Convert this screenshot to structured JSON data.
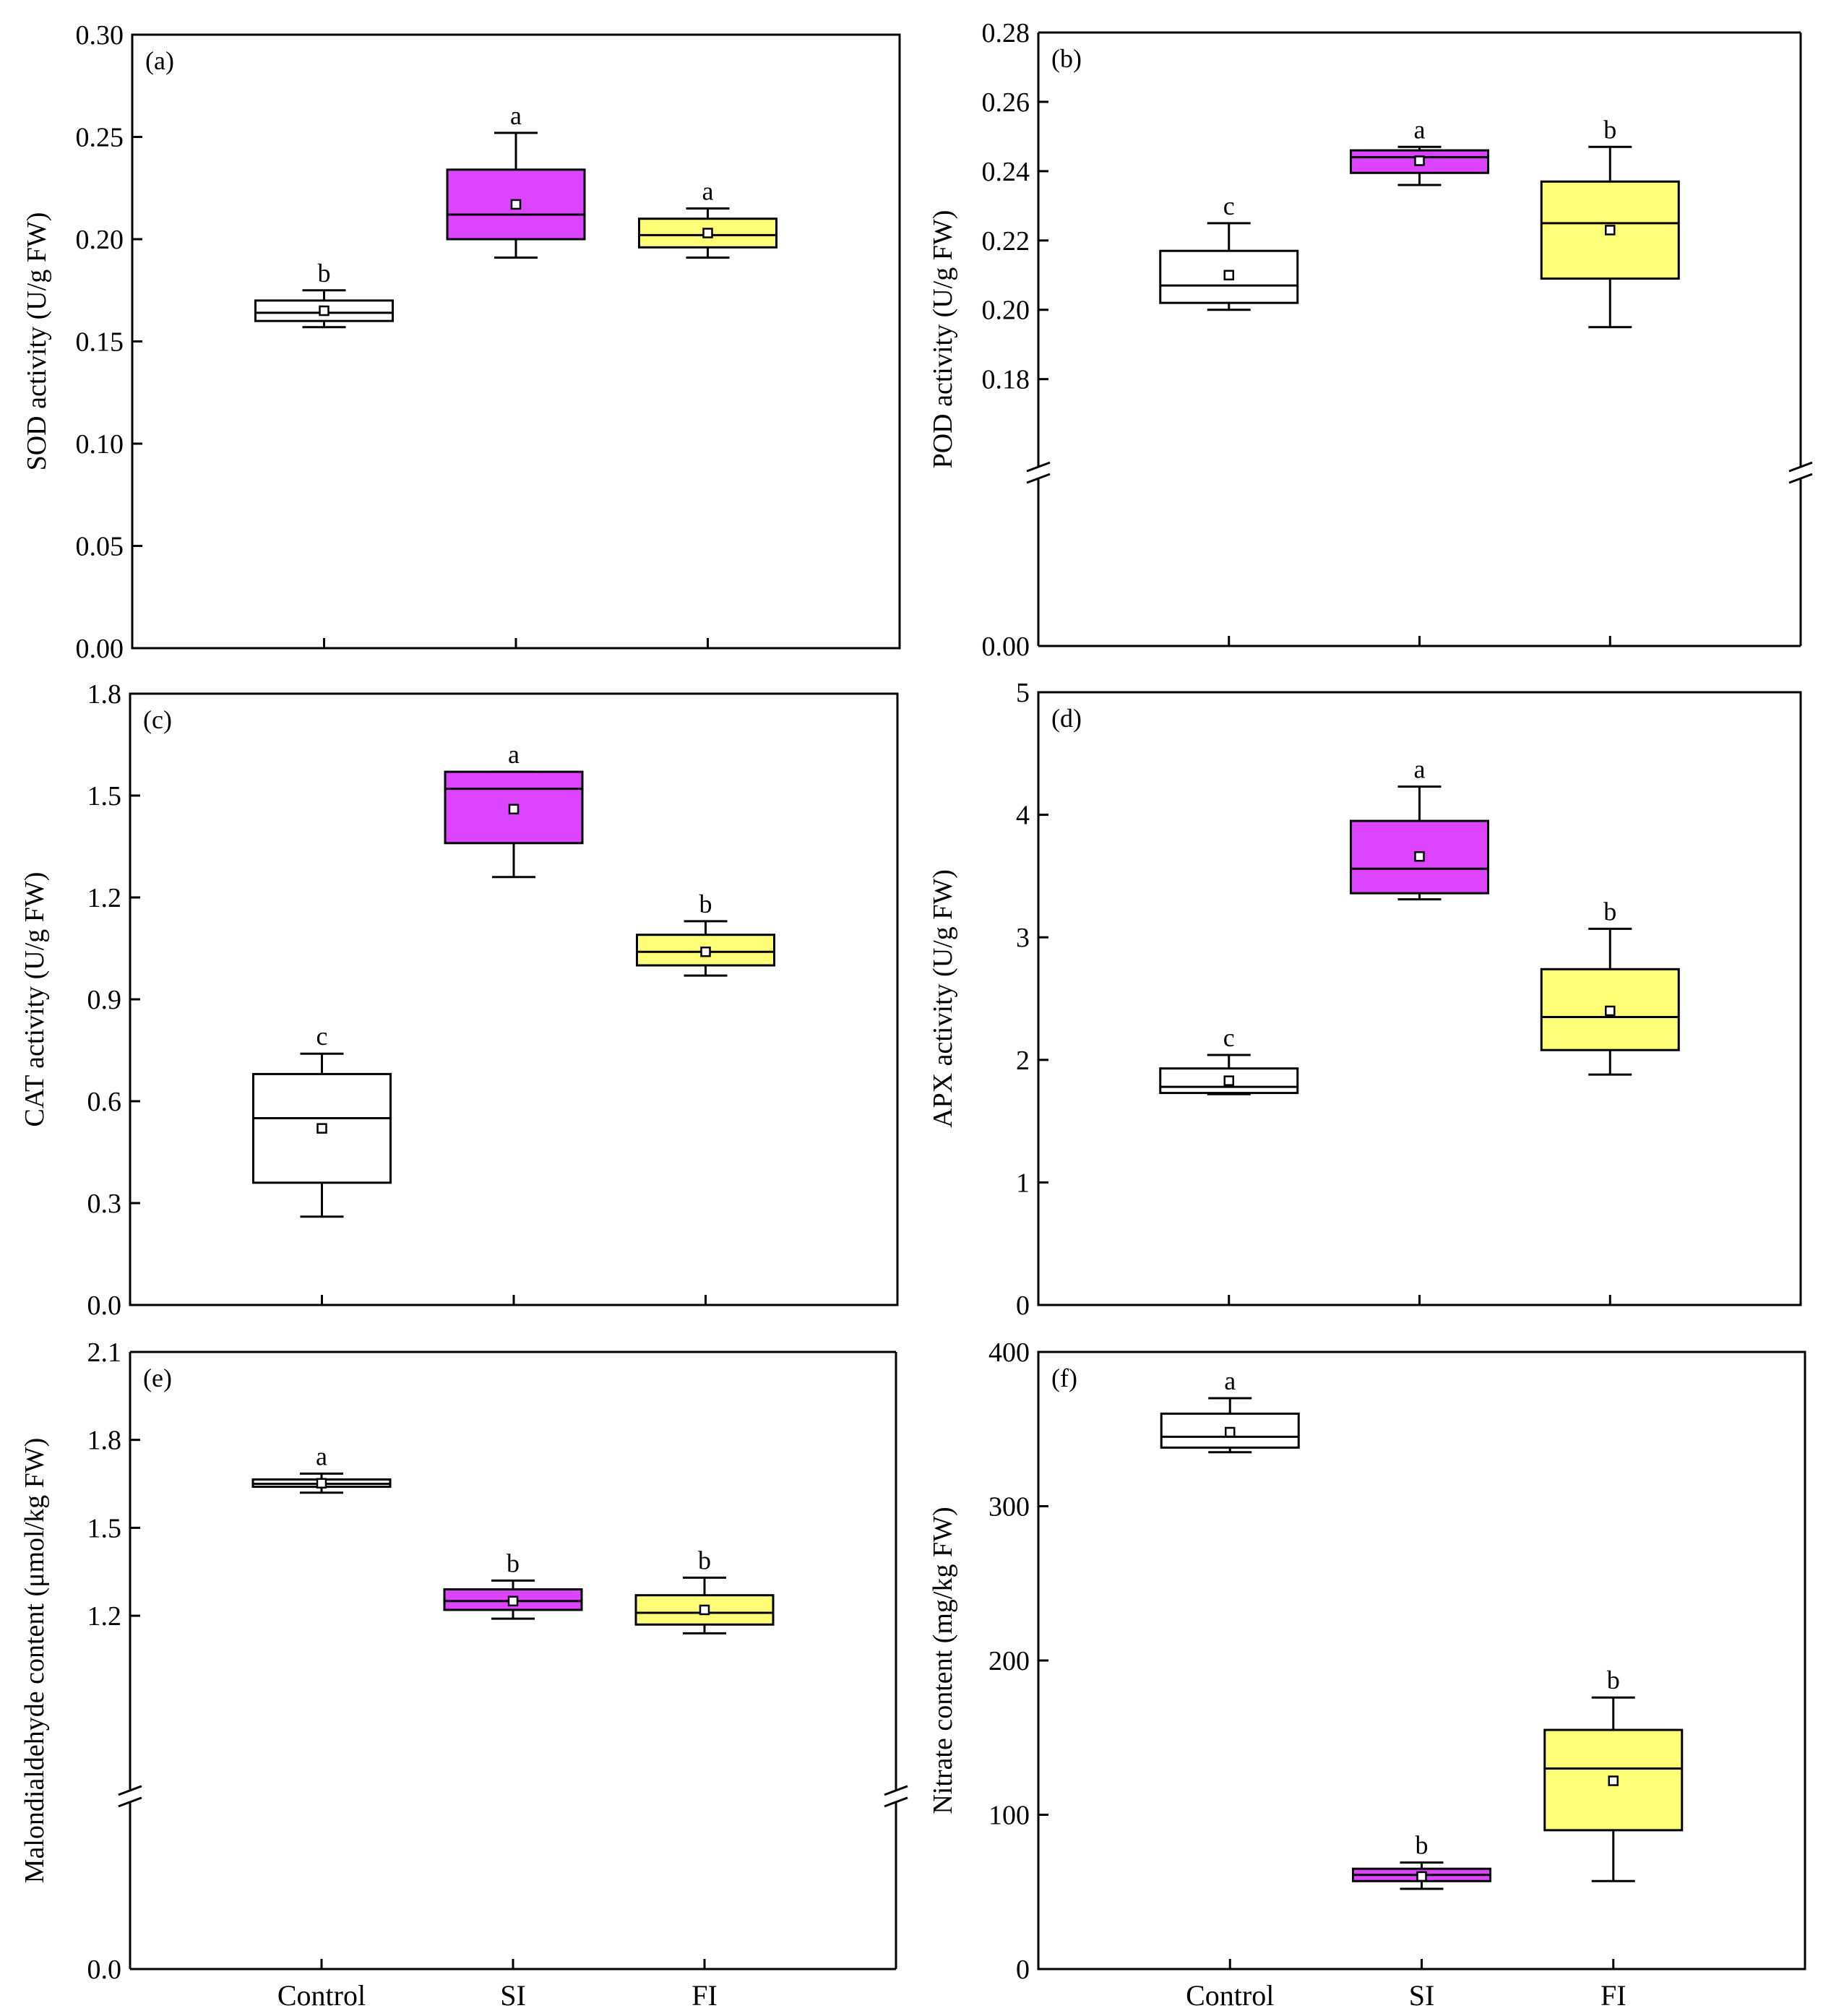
{
  "figure": {
    "categories": [
      "Control",
      "SI",
      "FI"
    ]
  },
  "colors": {
    "Control": "#ffffff",
    "SI": "#dd44ff",
    "FI": "#ffff77",
    "stroke": "#000000"
  },
  "chart_data": [
    {
      "type": "box",
      "panel": "(a)",
      "ylabel": "SOD activity (U/g FW)",
      "ylim": [
        0,
        0.3
      ],
      "yticks": [
        "0.00",
        "0.05",
        "0.10",
        "0.15",
        "0.20",
        "0.25",
        "0.30"
      ],
      "axis_break": null,
      "categories": [
        "Control",
        "SI",
        "FI"
      ],
      "boxes": [
        {
          "category": "Control",
          "whisker_low": 0.157,
          "q1": 0.16,
          "median": 0.164,
          "q3": 0.17,
          "whisker_high": 0.175,
          "mean": 0.165,
          "sig": "b"
        },
        {
          "category": "SI",
          "whisker_low": 0.191,
          "q1": 0.2,
          "median": 0.212,
          "q3": 0.234,
          "whisker_high": 0.252,
          "mean": 0.217,
          "sig": "a"
        },
        {
          "category": "FI",
          "whisker_low": 0.191,
          "q1": 0.196,
          "median": 0.202,
          "q3": 0.21,
          "whisker_high": 0.215,
          "mean": 0.203,
          "sig": "a"
        }
      ]
    },
    {
      "type": "box",
      "panel": "(b)",
      "ylabel": "POD activity (U/g FW)",
      "ylim": [
        0,
        0.28
      ],
      "yticks": [
        "0.00",
        "0.18",
        "0.20",
        "0.22",
        "0.24",
        "0.26",
        "0.28"
      ],
      "axis_break": {
        "low": 0.0,
        "high": 0.18
      },
      "categories": [
        "Control",
        "SI",
        "FI"
      ],
      "boxes": [
        {
          "category": "Control",
          "whisker_low": 0.2,
          "q1": 0.202,
          "median": 0.207,
          "q3": 0.217,
          "whisker_high": 0.225,
          "mean": 0.21,
          "sig": "c"
        },
        {
          "category": "SI",
          "whisker_low": 0.236,
          "q1": 0.2395,
          "median": 0.244,
          "q3": 0.246,
          "whisker_high": 0.247,
          "mean": 0.243,
          "sig": "a"
        },
        {
          "category": "FI",
          "whisker_low": 0.195,
          "q1": 0.209,
          "median": 0.225,
          "q3": 0.237,
          "whisker_high": 0.247,
          "mean": 0.223,
          "sig": "b"
        }
      ]
    },
    {
      "type": "box",
      "panel": "(c)",
      "ylabel": "CAT activity (U/g FW)",
      "ylim": [
        0,
        1.8
      ],
      "yticks": [
        "0.0",
        "0.3",
        "0.6",
        "0.9",
        "1.2",
        "1.5",
        "1.8"
      ],
      "axis_break": null,
      "categories": [
        "Control",
        "SI",
        "FI"
      ],
      "boxes": [
        {
          "category": "Control",
          "whisker_low": 0.26,
          "q1": 0.36,
          "median": 0.55,
          "q3": 0.68,
          "whisker_high": 0.74,
          "mean": 0.52,
          "sig": "c"
        },
        {
          "category": "SI",
          "whisker_low": 1.26,
          "q1": 1.36,
          "median": 1.52,
          "q3": 1.57,
          "whisker_high": 1.57,
          "mean": 1.46,
          "sig": "a"
        },
        {
          "category": "FI",
          "whisker_low": 0.97,
          "q1": 1.0,
          "median": 1.04,
          "q3": 1.09,
          "whisker_high": 1.13,
          "mean": 1.04,
          "sig": "b"
        }
      ]
    },
    {
      "type": "box",
      "panel": "(d)",
      "ylabel": "APX activity (U/g FW)",
      "ylim": [
        0,
        5
      ],
      "yticks": [
        "0",
        "1",
        "2",
        "3",
        "4",
        "5"
      ],
      "axis_break": null,
      "categories": [
        "Control",
        "SI",
        "FI"
      ],
      "boxes": [
        {
          "category": "Control",
          "whisker_low": 1.72,
          "q1": 1.73,
          "median": 1.78,
          "q3": 1.93,
          "whisker_high": 2.04,
          "mean": 1.83,
          "sig": "c"
        },
        {
          "category": "SI",
          "whisker_low": 3.31,
          "q1": 3.36,
          "median": 3.56,
          "q3": 3.95,
          "whisker_high": 4.23,
          "mean": 3.66,
          "sig": "a"
        },
        {
          "category": "FI",
          "whisker_low": 1.88,
          "q1": 2.08,
          "median": 2.35,
          "q3": 2.74,
          "whisker_high": 3.07,
          "mean": 2.4,
          "sig": "b"
        }
      ]
    },
    {
      "type": "box",
      "panel": "(e)",
      "ylabel": "Malondialdehyde content (μmol/kg FW)",
      "ylim": [
        0,
        2.1
      ],
      "yticks": [
        "0.0",
        "1.2",
        "1.5",
        "1.8",
        "2.1"
      ],
      "axis_break": {
        "low": 0.0,
        "high": 0.9
      },
      "categories": [
        "Control",
        "SI",
        "FI"
      ],
      "boxes": [
        {
          "category": "Control",
          "whisker_low": 1.62,
          "q1": 1.64,
          "median": 1.65,
          "q3": 1.665,
          "whisker_high": 1.685,
          "mean": 1.652,
          "sig": "a"
        },
        {
          "category": "SI",
          "whisker_low": 1.19,
          "q1": 1.22,
          "median": 1.25,
          "q3": 1.29,
          "whisker_high": 1.32,
          "mean": 1.25,
          "sig": "b"
        },
        {
          "category": "FI",
          "whisker_low": 1.14,
          "q1": 1.17,
          "median": 1.21,
          "q3": 1.27,
          "whisker_high": 1.33,
          "mean": 1.22,
          "sig": "b"
        }
      ]
    },
    {
      "type": "box",
      "panel": "(f)",
      "ylabel": "Nitrate content (mg/kg FW)",
      "ylim": [
        0,
        400
      ],
      "yticks": [
        "0",
        "100",
        "200",
        "300",
        "400"
      ],
      "axis_break": null,
      "categories": [
        "Control",
        "SI",
        "FI"
      ],
      "boxes": [
        {
          "category": "Control",
          "whisker_low": 335,
          "q1": 338,
          "median": 345,
          "q3": 360,
          "whisker_high": 370,
          "mean": 348,
          "sig": "a"
        },
        {
          "category": "SI",
          "whisker_low": 52,
          "q1": 57,
          "median": 61,
          "q3": 65,
          "whisker_high": 69,
          "mean": 60,
          "sig": "b"
        },
        {
          "category": "FI",
          "whisker_low": 57,
          "q1": 90,
          "median": 130,
          "q3": 155,
          "whisker_high": 176,
          "mean": 122,
          "sig": "b"
        }
      ]
    }
  ]
}
